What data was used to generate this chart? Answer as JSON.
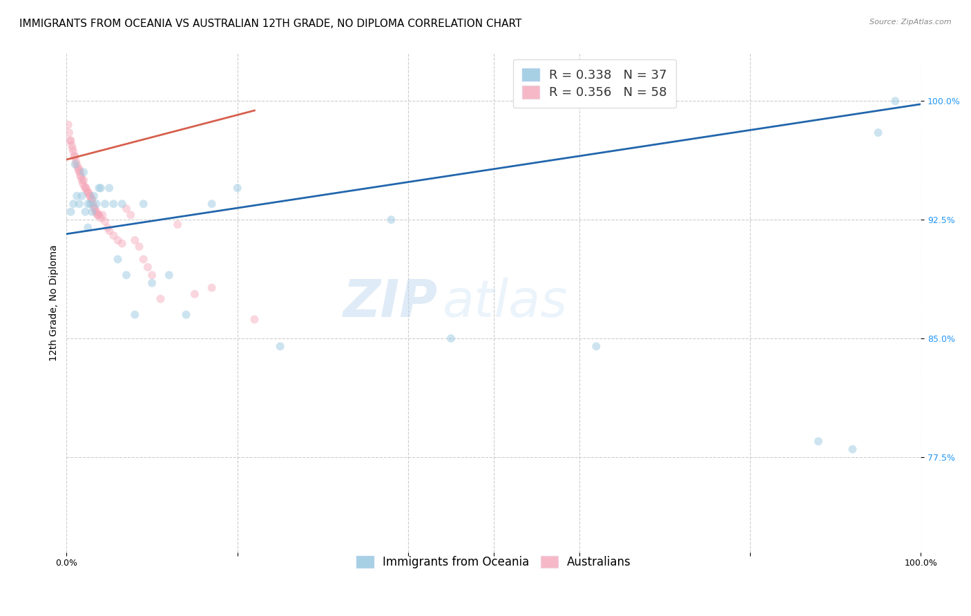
{
  "title": "IMMIGRANTS FROM OCEANIA VS AUSTRALIAN 12TH GRADE, NO DIPLOMA CORRELATION CHART",
  "source": "Source: ZipAtlas.com",
  "ylabel": "12th Grade, No Diploma",
  "ytick_labels": [
    "100.0%",
    "92.5%",
    "85.0%",
    "77.5%"
  ],
  "ytick_values": [
    1.0,
    0.925,
    0.85,
    0.775
  ],
  "xlim": [
    0.0,
    1.0
  ],
  "ylim": [
    0.715,
    1.03
  ],
  "legend_r_blue": "R = 0.338",
  "legend_n_blue": "N = 37",
  "legend_r_pink": "R = 0.356",
  "legend_n_pink": "N = 58",
  "legend_label_blue": "Immigrants from Oceania",
  "legend_label_pink": "Australians",
  "blue_color": "#92c5de",
  "pink_color": "#f4a6b8",
  "trendline_blue": "#2166ac",
  "trendline_pink": "#d6604d",
  "scatter_blue_x": [
    0.005,
    0.008,
    0.01,
    0.012,
    0.015,
    0.018,
    0.02,
    0.022,
    0.025,
    0.025,
    0.028,
    0.03,
    0.032,
    0.035,
    0.038,
    0.04,
    0.045,
    0.05,
    0.055,
    0.06,
    0.065,
    0.07,
    0.08,
    0.09,
    0.1,
    0.12,
    0.14,
    0.17,
    0.2,
    0.25,
    0.38,
    0.45,
    0.62,
    0.88,
    0.92,
    0.95,
    0.97
  ],
  "scatter_blue_y": [
    0.93,
    0.935,
    0.96,
    0.94,
    0.935,
    0.94,
    0.955,
    0.93,
    0.935,
    0.92,
    0.935,
    0.93,
    0.94,
    0.935,
    0.945,
    0.945,
    0.935,
    0.945,
    0.935,
    0.9,
    0.935,
    0.89,
    0.865,
    0.935,
    0.885,
    0.89,
    0.865,
    0.935,
    0.945,
    0.845,
    0.925,
    0.85,
    0.845,
    0.785,
    0.78,
    0.98,
    1.0
  ],
  "scatter_pink_x": [
    0.002,
    0.003,
    0.004,
    0.005,
    0.006,
    0.007,
    0.008,
    0.009,
    0.01,
    0.011,
    0.012,
    0.013,
    0.014,
    0.015,
    0.016,
    0.016,
    0.017,
    0.018,
    0.019,
    0.02,
    0.021,
    0.022,
    0.023,
    0.024,
    0.025,
    0.026,
    0.027,
    0.028,
    0.029,
    0.03,
    0.031,
    0.032,
    0.033,
    0.034,
    0.035,
    0.036,
    0.037,
    0.038,
    0.04,
    0.042,
    0.045,
    0.048,
    0.05,
    0.055,
    0.06,
    0.065,
    0.07,
    0.075,
    0.08,
    0.085,
    0.09,
    0.095,
    0.1,
    0.11,
    0.13,
    0.15,
    0.17,
    0.22
  ],
  "scatter_pink_y": [
    0.985,
    0.98,
    0.975,
    0.975,
    0.972,
    0.97,
    0.968,
    0.965,
    0.965,
    0.962,
    0.96,
    0.958,
    0.956,
    0.957,
    0.955,
    0.953,
    0.952,
    0.95,
    0.948,
    0.95,
    0.946,
    0.945,
    0.945,
    0.943,
    0.942,
    0.942,
    0.94,
    0.94,
    0.938,
    0.938,
    0.935,
    0.933,
    0.932,
    0.93,
    0.93,
    0.928,
    0.928,
    0.928,
    0.926,
    0.928,
    0.924,
    0.92,
    0.918,
    0.915,
    0.912,
    0.91,
    0.932,
    0.928,
    0.912,
    0.908,
    0.9,
    0.895,
    0.89,
    0.875,
    0.922,
    0.878,
    0.882,
    0.862
  ],
  "marker_size": 75,
  "marker_alpha": 0.45,
  "grid_color": "#cccccc",
  "background_color": "#ffffff",
  "watermark_zip": "ZIP",
  "watermark_atlas": "atlas",
  "title_fontsize": 11,
  "axis_label_fontsize": 10,
  "tick_fontsize": 9,
  "legend_fontsize": 12,
  "blue_r_color": "#2166ac",
  "blue_n_color": "#2196F3",
  "pink_r_color": "#d6604d",
  "pink_n_color": "#e91e63"
}
